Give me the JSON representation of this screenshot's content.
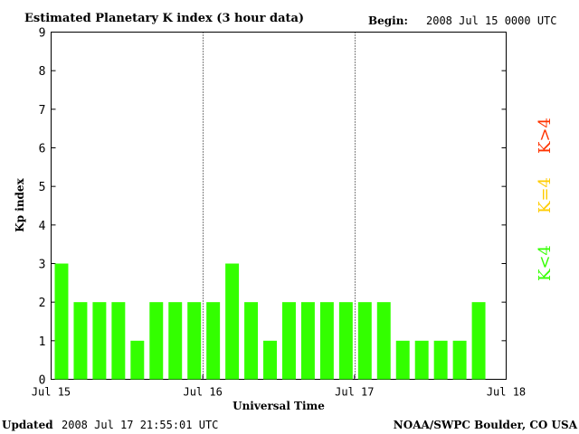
{
  "header": {
    "title": "Estimated Planetary K index (3 hour data)",
    "begin_label": "Begin:",
    "begin_value": "2008 Jul 15 0000 UTC"
  },
  "footer": {
    "updated_label": "Updated",
    "updated_value": "2008 Jul 17 21:55:01 UTC",
    "source": "NOAA/SWPC Boulder, CO USA"
  },
  "legend": {
    "high": {
      "label": "K>4",
      "color": "#ff3300"
    },
    "mid": {
      "label": "K=4",
      "color": "#ffcc00"
    },
    "low": {
      "label": "K<4",
      "color": "#33ff00"
    }
  },
  "chart_data": {
    "type": "bar",
    "title": "Estimated Planetary K index (3 hour data)",
    "xlabel": "Universal Time",
    "ylabel": "Kp index",
    "ylim": [
      0,
      9
    ],
    "y_ticks": [
      "0",
      "1",
      "2",
      "3",
      "4",
      "5",
      "6",
      "7",
      "8",
      "9"
    ],
    "x_tick_labels": [
      "Jul 15",
      "Jul 16",
      "Jul 17",
      "Jul 18"
    ],
    "day_dividers": [
      "Jul 16",
      "Jul 17"
    ],
    "interval_hours": 3,
    "bar_color": "#33ff00",
    "values": [
      3,
      2,
      2,
      2,
      1,
      2,
      2,
      2,
      2,
      3,
      2,
      1,
      2,
      2,
      2,
      2,
      2,
      2,
      1,
      1,
      1,
      1,
      2
    ]
  }
}
